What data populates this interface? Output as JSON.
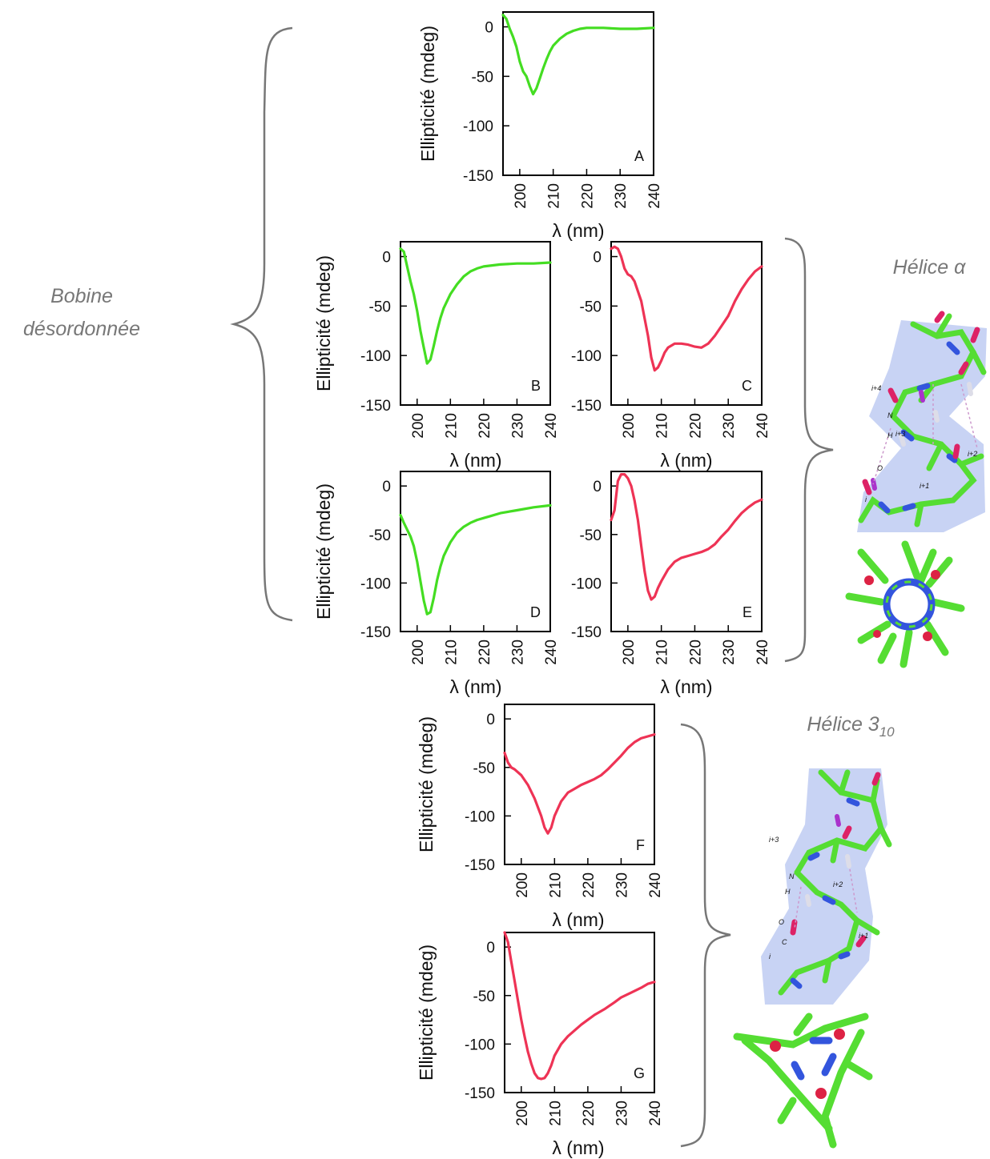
{
  "labels": {
    "random_coil_line1": "Bobine",
    "random_coil_line2": "désordonnée",
    "alpha_helix_text": "Hélice α",
    "helix310_text": "Hélice 3",
    "helix310_sub": "10"
  },
  "colors": {
    "random_coil_curve": "#44dd22",
    "helix_curve": "#ee3355",
    "brace": "#777777"
  },
  "helix_alpha_residue_labels": [
    "i+4",
    "N",
    "H",
    "i+3",
    "i+2",
    "O",
    "i+1",
    "i"
  ],
  "helix_310_residue_labels": [
    "i+3",
    "N",
    "H",
    "i+2",
    "O",
    "C",
    "i+1",
    "i"
  ],
  "chart_data": [
    {
      "type": "line",
      "panel": "A",
      "xlabel": "λ (nm)",
      "ylabel": "Ellipticité (mdeg)",
      "xlim": [
        195,
        240
      ],
      "ylim": [
        -150,
        15
      ],
      "xticks": [
        200,
        210,
        220,
        230,
        240
      ],
      "yticks": [
        0,
        -50,
        -100,
        -150
      ],
      "color": "#44dd22",
      "x": [
        195,
        196,
        197,
        198,
        199,
        200,
        201,
        202,
        203,
        204,
        205,
        206,
        207,
        208,
        209,
        210,
        212,
        214,
        216,
        218,
        220,
        222,
        225,
        230,
        235,
        240
      ],
      "y": [
        12,
        8,
        -2,
        -10,
        -20,
        -35,
        -45,
        -50,
        -60,
        -68,
        -62,
        -52,
        -42,
        -33,
        -25,
        -19,
        -12,
        -7,
        -4,
        -2,
        -1,
        -1,
        -1,
        -2,
        -2,
        -1
      ]
    },
    {
      "type": "line",
      "panel": "B",
      "xlabel": "λ (nm)",
      "ylabel": "Ellipticité (mdeg)",
      "xlim": [
        195,
        240
      ],
      "ylim": [
        -150,
        15
      ],
      "xticks": [
        200,
        210,
        220,
        230,
        240
      ],
      "yticks": [
        0,
        -50,
        -100,
        -150
      ],
      "color": "#44dd22",
      "x": [
        195,
        196,
        197,
        198,
        199,
        200,
        201,
        202,
        203,
        204,
        205,
        206,
        207,
        208,
        210,
        212,
        214,
        216,
        218,
        220,
        225,
        230,
        235,
        240
      ],
      "y": [
        8,
        5,
        -10,
        -25,
        -38,
        -55,
        -75,
        -92,
        -108,
        -104,
        -90,
        -75,
        -62,
        -52,
        -38,
        -28,
        -20,
        -15,
        -12,
        -10,
        -8,
        -7,
        -7,
        -6
      ]
    },
    {
      "type": "line",
      "panel": "C",
      "xlabel": "λ (nm)",
      "ylabel": "",
      "xlim": [
        195,
        240
      ],
      "ylim": [
        -150,
        15
      ],
      "xticks": [
        200,
        210,
        220,
        230,
        240
      ],
      "yticks": [
        0,
        -50,
        -100,
        -150
      ],
      "color": "#ee3355",
      "x": [
        195,
        196,
        197,
        198,
        199,
        200,
        201,
        202,
        204,
        206,
        207,
        208,
        209,
        210,
        211,
        212,
        214,
        216,
        218,
        220,
        222,
        224,
        226,
        228,
        230,
        232,
        234,
        236,
        238,
        240
      ],
      "y": [
        8,
        10,
        8,
        0,
        -12,
        -18,
        -20,
        -25,
        -45,
        -80,
        -102,
        -115,
        -112,
        -105,
        -97,
        -92,
        -88,
        -88,
        -89,
        -91,
        -92,
        -88,
        -80,
        -70,
        -60,
        -45,
        -33,
        -23,
        -15,
        -10
      ]
    },
    {
      "type": "line",
      "panel": "D",
      "xlabel": "λ (nm)",
      "ylabel": "Ellipticité (mdeg)",
      "xlim": [
        195,
        240
      ],
      "ylim": [
        -150,
        15
      ],
      "xticks": [
        200,
        210,
        220,
        230,
        240
      ],
      "yticks": [
        0,
        -50,
        -100,
        -150
      ],
      "color": "#44dd22",
      "x": [
        195,
        196,
        197,
        198,
        199,
        200,
        201,
        202,
        203,
        204,
        205,
        206,
        207,
        208,
        210,
        212,
        214,
        216,
        218,
        220,
        222,
        225,
        230,
        235,
        240
      ],
      "y": [
        -30,
        -38,
        -45,
        -52,
        -62,
        -78,
        -98,
        -118,
        -132,
        -130,
        -115,
        -97,
        -83,
        -72,
        -58,
        -48,
        -42,
        -38,
        -35,
        -33,
        -31,
        -28,
        -25,
        -22,
        -20
      ]
    },
    {
      "type": "line",
      "panel": "E",
      "xlabel": "λ (nm)",
      "ylabel": "",
      "xlim": [
        195,
        240
      ],
      "ylim": [
        -150,
        15
      ],
      "xticks": [
        200,
        210,
        220,
        230,
        240
      ],
      "yticks": [
        0,
        -50,
        -100,
        -150
      ],
      "color": "#ee3355",
      "x": [
        195,
        196,
        197,
        198,
        199,
        200,
        201,
        202,
        203,
        204,
        205,
        206,
        207,
        208,
        209,
        210,
        212,
        214,
        216,
        218,
        220,
        222,
        224,
        226,
        228,
        230,
        232,
        234,
        236,
        238,
        240
      ],
      "y": [
        -35,
        -25,
        5,
        12,
        12,
        8,
        0,
        -15,
        -35,
        -62,
        -88,
        -108,
        -117,
        -114,
        -105,
        -98,
        -86,
        -78,
        -74,
        -72,
        -70,
        -68,
        -65,
        -60,
        -52,
        -45,
        -36,
        -28,
        -22,
        -17,
        -14
      ]
    },
    {
      "type": "line",
      "panel": "F",
      "xlabel": "λ (nm)",
      "ylabel": "Ellipticité (mdeg)",
      "xlim": [
        195,
        240
      ],
      "ylim": [
        -150,
        15
      ],
      "xticks": [
        200,
        210,
        220,
        230,
        240
      ],
      "yticks": [
        0,
        -50,
        -100,
        -150
      ],
      "color": "#ee3355",
      "x": [
        195,
        196,
        197,
        198,
        200,
        202,
        204,
        206,
        207,
        208,
        209,
        210,
        212,
        214,
        216,
        218,
        220,
        222,
        224,
        226,
        228,
        230,
        232,
        234,
        236,
        238,
        240
      ],
      "y": [
        -35,
        -45,
        -50,
        -52,
        -58,
        -68,
        -82,
        -100,
        -112,
        -118,
        -112,
        -100,
        -85,
        -76,
        -72,
        -68,
        -65,
        -62,
        -58,
        -52,
        -45,
        -38,
        -30,
        -24,
        -20,
        -18,
        -16
      ]
    },
    {
      "type": "line",
      "panel": "G",
      "xlabel": "λ (nm)",
      "ylabel": "Ellipticité (mdeg)",
      "xlim": [
        195,
        240
      ],
      "ylim": [
        -150,
        15
      ],
      "xticks": [
        200,
        210,
        220,
        230,
        240
      ],
      "yticks": [
        0,
        -50,
        -100,
        -150
      ],
      "color": "#ee3355",
      "x": [
        195,
        196,
        197,
        198,
        199,
        200,
        201,
        202,
        203,
        204,
        205,
        206,
        207,
        208,
        209,
        210,
        212,
        214,
        216,
        218,
        220,
        222,
        225,
        228,
        230,
        233,
        236,
        238,
        240
      ],
      "y": [
        15,
        5,
        -15,
        -35,
        -55,
        -75,
        -92,
        -108,
        -120,
        -130,
        -135,
        -136,
        -135,
        -130,
        -122,
        -112,
        -100,
        -92,
        -86,
        -80,
        -75,
        -70,
        -64,
        -57,
        -52,
        -47,
        -42,
        -38,
        -36
      ]
    }
  ]
}
